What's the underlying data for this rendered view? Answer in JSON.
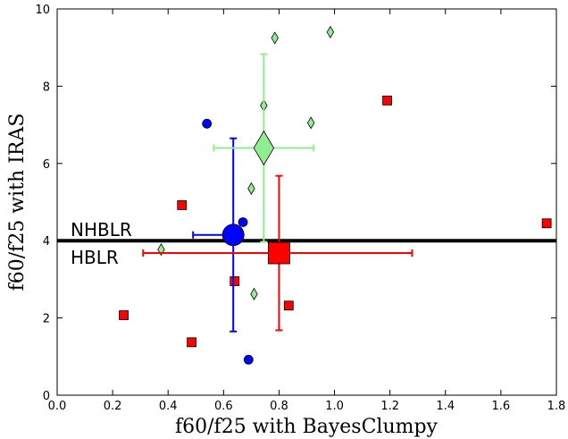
{
  "chart_data": {
    "type": "scatter",
    "title": "",
    "xlabel": "f60/f25 with BayesClumpy",
    "ylabel": "f60/f25 with IRAS",
    "xlim": [
      0.0,
      1.8
    ],
    "ylim": [
      0,
      10
    ],
    "xticks": [
      "0.0",
      "0.2",
      "0.4",
      "0.6",
      "0.8",
      "1.0",
      "1.2",
      "1.4",
      "1.6",
      "1.8"
    ],
    "yticks": [
      "0",
      "2",
      "4",
      "6",
      "8",
      "10"
    ],
    "grid": false,
    "threshold_line": {
      "y": 4.0,
      "color": "#000000"
    },
    "region_labels": {
      "above": "NHBLR",
      "below": "HBLR"
    },
    "series": [
      {
        "marker": "circle",
        "color": "#0000ff",
        "points": [
          [
            0.54,
            7.03
          ],
          [
            0.67,
            4.48
          ],
          [
            0.69,
            0.92
          ]
        ],
        "mean": {
          "x": 0.635,
          "y": 4.15,
          "xerr": [
            0.145,
            0.02
          ],
          "yerr": [
            2.5,
            2.5
          ]
        }
      },
      {
        "marker": "square",
        "color": "#ff0000",
        "points": [
          [
            0.24,
            2.07
          ],
          [
            0.45,
            4.92
          ],
          [
            0.485,
            1.37
          ],
          [
            0.64,
            2.95
          ],
          [
            0.835,
            2.32
          ],
          [
            1.19,
            7.63
          ],
          [
            1.765,
            4.45
          ]
        ],
        "mean": {
          "x": 0.8,
          "y": 3.68,
          "xerr": [
            0.49,
            0.48
          ],
          "yerr": [
            2.0,
            2.0
          ]
        }
      },
      {
        "marker": "diamond",
        "color": "#90ee90",
        "points": [
          [
            0.375,
            3.77
          ],
          [
            0.71,
            2.62
          ],
          [
            0.7,
            5.35
          ],
          [
            0.745,
            7.5
          ],
          [
            0.785,
            9.25
          ],
          [
            0.915,
            7.05
          ],
          [
            0.985,
            9.4
          ]
        ],
        "mean": {
          "x": 0.745,
          "y": 6.4,
          "xerr": [
            0.18,
            0.18
          ],
          "yerr": [
            2.43,
            2.43
          ]
        }
      }
    ]
  }
}
